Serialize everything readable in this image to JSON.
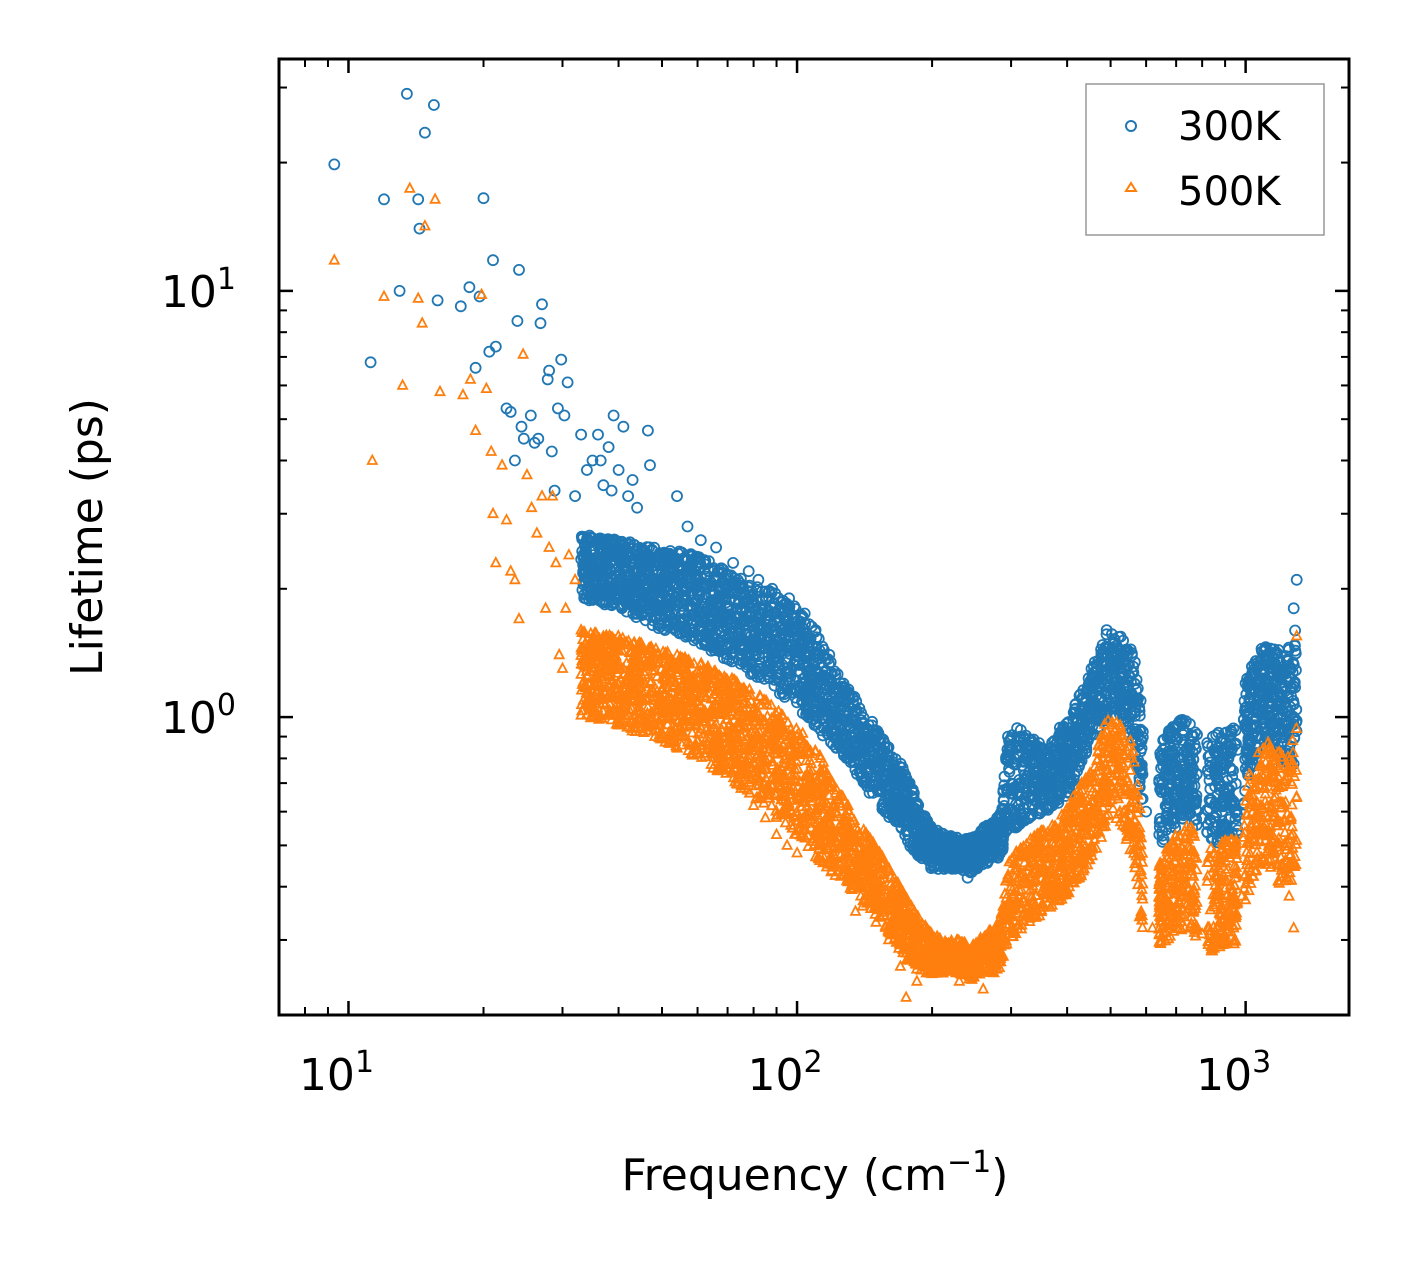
{
  "chart_data": {
    "type": "scatter",
    "title": "",
    "xlabel": "Frequency (cm",
    "xlabel_sup": "−1",
    "xlabel_close": ")",
    "ylabel": "Lifetime (ps)",
    "xscale": "log",
    "yscale": "log",
    "xlim": [
      7,
      1700
    ],
    "ylim": [
      0.2,
      35
    ],
    "x_ticks": [
      {
        "value": 10,
        "base": "10",
        "exp": "1"
      },
      {
        "value": 100,
        "base": "10",
        "exp": "2"
      },
      {
        "value": 1000,
        "base": "10",
        "exp": "3"
      }
    ],
    "y_ticks": [
      {
        "value": 1,
        "base": "10",
        "exp": "0"
      },
      {
        "value": 10,
        "base": "10",
        "exp": "1"
      }
    ],
    "legend": {
      "position": "top-right",
      "entries": [
        {
          "label": "300K",
          "color": "#1f77b4",
          "marker": "circle"
        },
        {
          "label": "500K",
          "color": "#ff7f0e",
          "marker": "triangle"
        }
      ]
    },
    "series": [
      {
        "name": "300K",
        "color": "#1f77b4",
        "marker": "circle",
        "points": [
          [
            9.3,
            19.8
          ],
          [
            11.2,
            6.8
          ],
          [
            12,
            16.4
          ],
          [
            13,
            10
          ],
          [
            13.5,
            29
          ],
          [
            14.3,
            16.4
          ],
          [
            14.4,
            14
          ],
          [
            14.8,
            23.5
          ],
          [
            15.5,
            27.3
          ],
          [
            15.8,
            9.5
          ],
          [
            17.8,
            9.2
          ],
          [
            18.6,
            10.2
          ],
          [
            19.2,
            6.6
          ],
          [
            19.6,
            9.7
          ],
          [
            20,
            16.5
          ],
          [
            20.6,
            7.2
          ],
          [
            21,
            11.8
          ],
          [
            21.3,
            7.4
          ],
          [
            22.5,
            5.3
          ],
          [
            23,
            5.2
          ],
          [
            23.5,
            4
          ],
          [
            23.8,
            8.5
          ],
          [
            24,
            11.2
          ],
          [
            24.3,
            4.8
          ],
          [
            24.6,
            4.5
          ],
          [
            25.5,
            5.1
          ],
          [
            26,
            4.4
          ],
          [
            26.5,
            4.5
          ],
          [
            26.8,
            8.4
          ],
          [
            27,
            9.3
          ],
          [
            27.8,
            6.2
          ],
          [
            28,
            6.5
          ],
          [
            28.4,
            4.2
          ],
          [
            28.8,
            3.4
          ],
          [
            29.3,
            5.3
          ],
          [
            29.8,
            6.9
          ],
          [
            30.3,
            5.1
          ],
          [
            30.8,
            6.1
          ],
          [
            32,
            3.3
          ],
          [
            33,
            4.6
          ],
          [
            34,
            3.8
          ],
          [
            35,
            4
          ],
          [
            36,
            4.6
          ],
          [
            36.5,
            4
          ],
          [
            37,
            3.5
          ],
          [
            38,
            4.3
          ],
          [
            38.6,
            3.4
          ],
          [
            39,
            5.1
          ],
          [
            40,
            3.8
          ],
          [
            41,
            4.8
          ],
          [
            42,
            3.3
          ],
          [
            43,
            3.6
          ],
          [
            44,
            3.1
          ],
          [
            46.5,
            4.7
          ],
          [
            47,
            3.9
          ],
          [
            54,
            3.3
          ],
          [
            57,
            2.8
          ],
          [
            61,
            2.6
          ],
          [
            66,
            2.5
          ],
          [
            72,
            2.3
          ],
          [
            78,
            2.2
          ],
          [
            82,
            2.1
          ],
          [
            88,
            2
          ],
          [
            96,
            1.9
          ],
          [
            104,
            1.75
          ],
          [
            110,
            1.6
          ],
          [
            118,
            1.4
          ],
          [
            125,
            1.2
          ],
          [
            132,
            1.05
          ],
          [
            138,
            0.95
          ],
          [
            145,
            0.88
          ],
          [
            155,
            0.8
          ],
          [
            165,
            0.7
          ],
          [
            175,
            0.62
          ],
          [
            185,
            0.55
          ],
          [
            195,
            0.48
          ],
          [
            210,
            0.46
          ],
          [
            225,
            0.45
          ],
          [
            240,
            0.42
          ],
          [
            255,
            0.46
          ],
          [
            270,
            0.5
          ],
          [
            285,
            0.55
          ],
          [
            300,
            0.85
          ],
          [
            320,
            0.75
          ],
          [
            350,
            0.72
          ],
          [
            400,
            0.9
          ],
          [
            450,
            1.2
          ],
          [
            490,
            1.6
          ],
          [
            520,
            1.45
          ],
          [
            560,
            1.1
          ],
          [
            600,
            0.6
          ],
          [
            650,
            0.68
          ],
          [
            700,
            0.9
          ],
          [
            730,
            0.92
          ],
          [
            760,
            0.55
          ],
          [
            800,
            0.58
          ],
          [
            880,
            0.52
          ],
          [
            950,
            0.6
          ],
          [
            1000,
            1.2
          ],
          [
            1060,
            1.3
          ],
          [
            1120,
            1.35
          ],
          [
            1200,
            1.25
          ],
          [
            1250,
            1.3
          ],
          [
            1280,
            1.8
          ],
          [
            1300,
            2.1
          ]
        ],
        "band": {
          "x": [
            33,
            40,
            50,
            60,
            70,
            80,
            90,
            100,
            110,
            120,
            130,
            140,
            150,
            160,
            170,
            180,
            190,
            200,
            215,
            230,
            245,
            260,
            275,
            285,
            295,
            310,
            330,
            360,
            400,
            430,
            460,
            490,
            510,
            530,
            555,
            575,
            590,
            640,
            670,
            700,
            730,
            760,
            780,
            800,
            850,
            900,
            950,
            980,
            1000,
            1040,
            1080,
            1120,
            1160,
            1200,
            1240,
            1280,
            1300
          ],
          "low": [
            1.9,
            1.8,
            1.6,
            1.5,
            1.35,
            1.25,
            1.15,
            1.05,
            0.95,
            0.85,
            0.78,
            0.7,
            0.63,
            0.58,
            0.53,
            0.49,
            0.46,
            0.44,
            0.44,
            0.44,
            0.43,
            0.45,
            0.46,
            0.47,
            0.55,
            0.55,
            0.58,
            0.6,
            0.65,
            0.78,
            0.9,
            1.0,
            1.05,
            0.98,
            0.9,
            0.72,
            0.58,
            0.5,
            0.52,
            0.55,
            0.58,
            0.58,
            0.55,
            0.52,
            0.5,
            0.52,
            0.5,
            0.5,
            0.7,
            0.78,
            0.85,
            0.85,
            0.82,
            0.78,
            0.78,
            0.75,
            0.9
          ],
          "high": [
            2.7,
            2.6,
            2.5,
            2.4,
            2.2,
            2.05,
            1.95,
            1.8,
            1.6,
            1.35,
            1.18,
            1.05,
            0.95,
            0.85,
            0.78,
            0.7,
            0.6,
            0.55,
            0.53,
            0.52,
            0.52,
            0.55,
            0.57,
            0.6,
            0.9,
            0.95,
            0.9,
            0.85,
            1.0,
            1.15,
            1.35,
            1.6,
            1.6,
            1.55,
            1.45,
            1.3,
            0.98,
            0.88,
            0.92,
            0.98,
            1.0,
            0.95,
            0.95,
            0.9,
            0.9,
            0.95,
            0.95,
            0.95,
            1.25,
            1.35,
            1.45,
            1.5,
            1.45,
            1.45,
            1.45,
            1.55,
            1.7
          ]
        }
      },
      {
        "name": "500K",
        "color": "#ff7f0e",
        "marker": "triangle",
        "points": [
          [
            9.3,
            11.8
          ],
          [
            11.3,
            4
          ],
          [
            12,
            9.7
          ],
          [
            13.2,
            6
          ],
          [
            13.7,
            17.4
          ],
          [
            14.3,
            9.6
          ],
          [
            14.6,
            8.4
          ],
          [
            14.8,
            14.2
          ],
          [
            15.6,
            16.4
          ],
          [
            16,
            5.8
          ],
          [
            18,
            5.7
          ],
          [
            18.7,
            6.2
          ],
          [
            19.2,
            4.7
          ],
          [
            19.8,
            9.8
          ],
          [
            20.3,
            5.9
          ],
          [
            20.8,
            4.2
          ],
          [
            21,
            3
          ],
          [
            21.3,
            2.3
          ],
          [
            22,
            3.9
          ],
          [
            22.5,
            2.9
          ],
          [
            23,
            2.2
          ],
          [
            23.5,
            2.1
          ],
          [
            24,
            1.7
          ],
          [
            24.5,
            7.1
          ],
          [
            25,
            3.7
          ],
          [
            25.6,
            3.1
          ],
          [
            26.3,
            2.7
          ],
          [
            27,
            3.3
          ],
          [
            27.5,
            1.8
          ],
          [
            28,
            2.5
          ],
          [
            28.5,
            3.3
          ],
          [
            29,
            2.3
          ],
          [
            29.5,
            1.4
          ],
          [
            30,
            1.3
          ],
          [
            30.5,
            1.8
          ],
          [
            31,
            2.4
          ],
          [
            32,
            2.1
          ],
          [
            33,
            1.6
          ],
          [
            34,
            1.45
          ],
          [
            35,
            1.3
          ],
          [
            36,
            1.35
          ],
          [
            38,
            1.25
          ],
          [
            40,
            1.2
          ],
          [
            45,
            1.15
          ],
          [
            50,
            1.05
          ],
          [
            55,
            0.95
          ],
          [
            60,
            0.88
          ],
          [
            65,
            0.82
          ],
          [
            70,
            0.75
          ],
          [
            75,
            0.68
          ],
          [
            80,
            0.62
          ],
          [
            85,
            0.58
          ],
          [
            90,
            0.53
          ],
          [
            95,
            0.5
          ],
          [
            100,
            0.48
          ],
          [
            110,
            0.47
          ],
          [
            120,
            0.45
          ],
          [
            130,
            0.42
          ],
          [
            135,
            0.35
          ],
          [
            140,
            0.36
          ],
          [
            150,
            0.33
          ],
          [
            160,
            0.3
          ],
          [
            170,
            0.26
          ],
          [
            175,
            0.22
          ],
          [
            185,
            0.24
          ],
          [
            200,
            0.25
          ],
          [
            215,
            0.26
          ],
          [
            230,
            0.24
          ],
          [
            245,
            0.25
          ],
          [
            260,
            0.23
          ],
          [
            280,
            0.3
          ],
          [
            300,
            0.34
          ],
          [
            320,
            0.37
          ],
          [
            350,
            0.48
          ],
          [
            400,
            0.55
          ],
          [
            450,
            0.62
          ],
          [
            490,
            0.85
          ],
          [
            520,
            0.78
          ],
          [
            560,
            0.55
          ],
          [
            580,
            0.34
          ],
          [
            620,
            0.32
          ],
          [
            650,
            0.33
          ],
          [
            700,
            0.4
          ],
          [
            730,
            0.42
          ],
          [
            760,
            0.35
          ],
          [
            800,
            0.31
          ],
          [
            880,
            0.3
          ],
          [
            940,
            0.32
          ],
          [
            980,
            0.38
          ],
          [
            1020,
            0.45
          ],
          [
            1080,
            0.55
          ],
          [
            1140,
            0.5
          ],
          [
            1200,
            0.45
          ],
          [
            1250,
            0.38
          ],
          [
            1280,
            0.32
          ],
          [
            1300,
            1.55
          ]
        ],
        "band": {
          "x": [
            33,
            40,
            50,
            60,
            70,
            80,
            90,
            100,
            110,
            120,
            130,
            140,
            150,
            160,
            170,
            180,
            190,
            200,
            215,
            230,
            245,
            260,
            275,
            285,
            295,
            310,
            330,
            360,
            400,
            430,
            460,
            490,
            510,
            530,
            555,
            575,
            590,
            640,
            670,
            700,
            730,
            760,
            780,
            800,
            850,
            900,
            950,
            980,
            1000,
            1040,
            1080,
            1120,
            1160,
            1200,
            1240,
            1280,
            1300
          ],
          "low": [
            1.0,
            0.95,
            0.88,
            0.8,
            0.72,
            0.65,
            0.58,
            0.52,
            0.47,
            0.43,
            0.4,
            0.37,
            0.34,
            0.31,
            0.28,
            0.26,
            0.25,
            0.25,
            0.25,
            0.25,
            0.24,
            0.25,
            0.25,
            0.26,
            0.3,
            0.31,
            0.33,
            0.35,
            0.38,
            0.42,
            0.48,
            0.55,
            0.58,
            0.55,
            0.48,
            0.4,
            0.3,
            0.29,
            0.3,
            0.31,
            0.32,
            0.31,
            0.3,
            0.29,
            0.28,
            0.29,
            0.29,
            0.3,
            0.37,
            0.42,
            0.45,
            0.45,
            0.42,
            0.4,
            0.4,
            0.42,
            0.45
          ],
          "high": [
            1.6,
            1.55,
            1.45,
            1.35,
            1.25,
            1.15,
            1.05,
            0.95,
            0.85,
            0.72,
            0.62,
            0.55,
            0.5,
            0.45,
            0.4,
            0.36,
            0.33,
            0.31,
            0.3,
            0.3,
            0.29,
            0.31,
            0.32,
            0.34,
            0.46,
            0.5,
            0.52,
            0.55,
            0.62,
            0.7,
            0.8,
            1.0,
            1.0,
            0.95,
            0.88,
            0.75,
            0.5,
            0.46,
            0.5,
            0.53,
            0.56,
            0.55,
            0.52,
            0.5,
            0.5,
            0.52,
            0.52,
            0.53,
            0.72,
            0.78,
            0.85,
            0.88,
            0.85,
            0.82,
            0.82,
            0.9,
            1.0
          ]
        }
      }
    ]
  }
}
